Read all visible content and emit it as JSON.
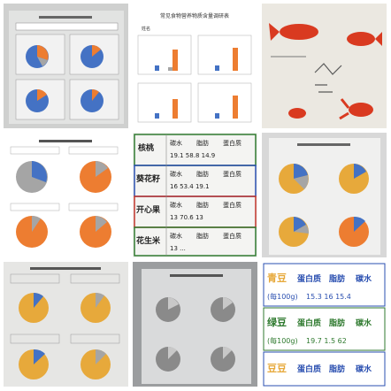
{
  "tiles": {
    "t2_header": "常见食物营养物质含量调研表",
    "t2_name": "姓名",
    "t5": {
      "row1_name": "核桃",
      "row1_a": "碳水",
      "row1_b": "脂肪",
      "row1_c": "蛋白质",
      "row1_vals": "19.1     58.8     14.9",
      "row2_name": "葵花籽",
      "row2_a": "碳水",
      "row2_b": "脂肪",
      "row2_c": "蛋白质",
      "row2_vals": "16       53.4      19.1",
      "row3_name": "开心果",
      "row3_a": "碳水",
      "row3_b": "脂肪",
      "row3_c": "蛋白质",
      "row3_vals": "13       70.6      13",
      "row4_name": "花生米",
      "row4_a": "碳水",
      "row4_b": "脂肪",
      "row4_c": "蛋白质",
      "row4_vals": "13       ..."
    },
    "t9": {
      "r1_name": "青豆",
      "r1_a": "蛋白质",
      "r1_b": "脂肪",
      "r1_c": "碳水",
      "r1_unit": "(每100g)",
      "r1_vals": "15.3   16      15.4",
      "r2_name": "绿豆",
      "r2_a": "蛋白质",
      "r2_b": "脂肪",
      "r2_c": "碳水",
      "r2_unit": "(每100g)",
      "r2_vals": "19.7   1.5    62",
      "r3_name": "豆豆",
      "r3_a": "蛋白质",
      "r3_b": "脂肪",
      "r3_c": "碳水"
    }
  },
  "colors": {
    "blue": "#4472c4",
    "orange": "#ed7d31",
    "gray": "#a5a5a5",
    "gold": "#e7a93b",
    "red_fish": "#d93a20",
    "green_ink": "#2f7a2f",
    "blue_ink": "#2a4fb0"
  }
}
